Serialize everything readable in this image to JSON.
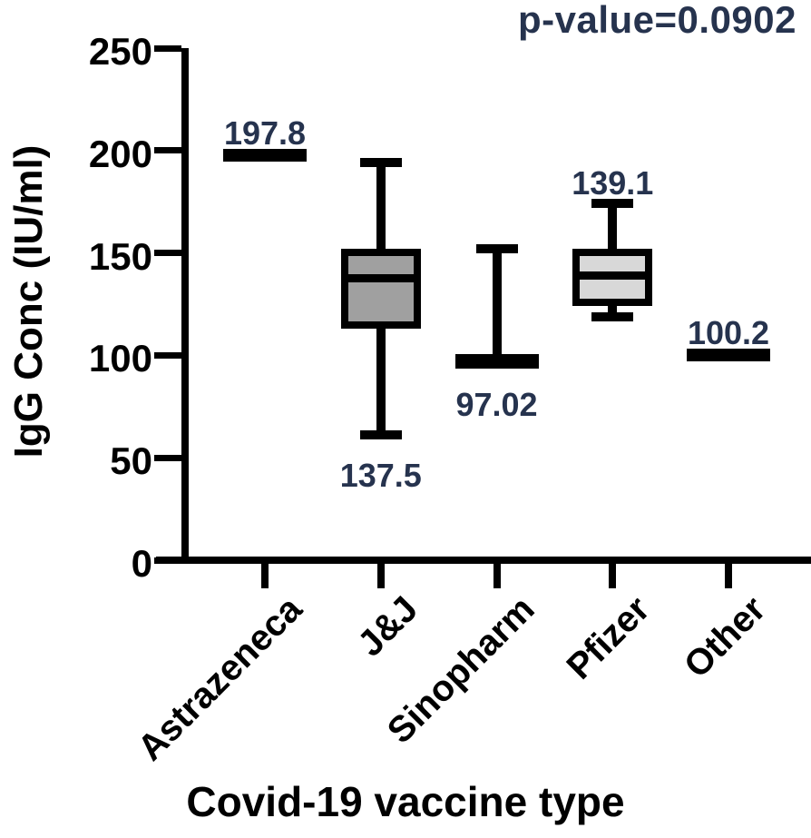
{
  "chart_data": {
    "type": "box",
    "p_value_label": "p-value=0.0902",
    "xlabel": "Covid-19 vaccine type",
    "ylabel": "IgG Conc (IU/ml)",
    "ylim": [
      0,
      250
    ],
    "yticks": [
      0,
      50,
      100,
      150,
      200,
      250
    ],
    "grid": false,
    "legend": false,
    "categories": [
      "Astrazeneca",
      "J&J",
      "Sinopharm",
      "Pfizer",
      "Other"
    ],
    "colors": {
      "stroke": "#000000",
      "axis_text": "#000000",
      "value_label_text": "#26334e",
      "jj_box_fill": "#a0a0a0",
      "pfizer_box_fill": "#d8d8d8",
      "background": "#ffffff"
    },
    "boxes": [
      {
        "category": "Astrazeneca",
        "style": "line",
        "value": 197.8,
        "label": "197.8",
        "label_position": "above"
      },
      {
        "category": "J&J",
        "style": "box",
        "min": 61,
        "q1": 113,
        "median": 137.5,
        "q3": 152,
        "max": 194,
        "fill": "#a0a0a0",
        "label": "137.5",
        "label_position": "below"
      },
      {
        "category": "Sinopharm",
        "style": "line-whisker-up",
        "value": 97.02,
        "whisker_max": 152,
        "label": "97.02",
        "label_position": "below"
      },
      {
        "category": "Pfizer",
        "style": "box",
        "min": 119,
        "q1": 124,
        "median": 139.1,
        "q3": 152,
        "max": 174,
        "fill": "#d8d8d8",
        "label": "139.1",
        "label_position": "above"
      },
      {
        "category": "Other",
        "style": "line",
        "value": 100.2,
        "label": "100.2",
        "label_position": "above"
      }
    ]
  }
}
